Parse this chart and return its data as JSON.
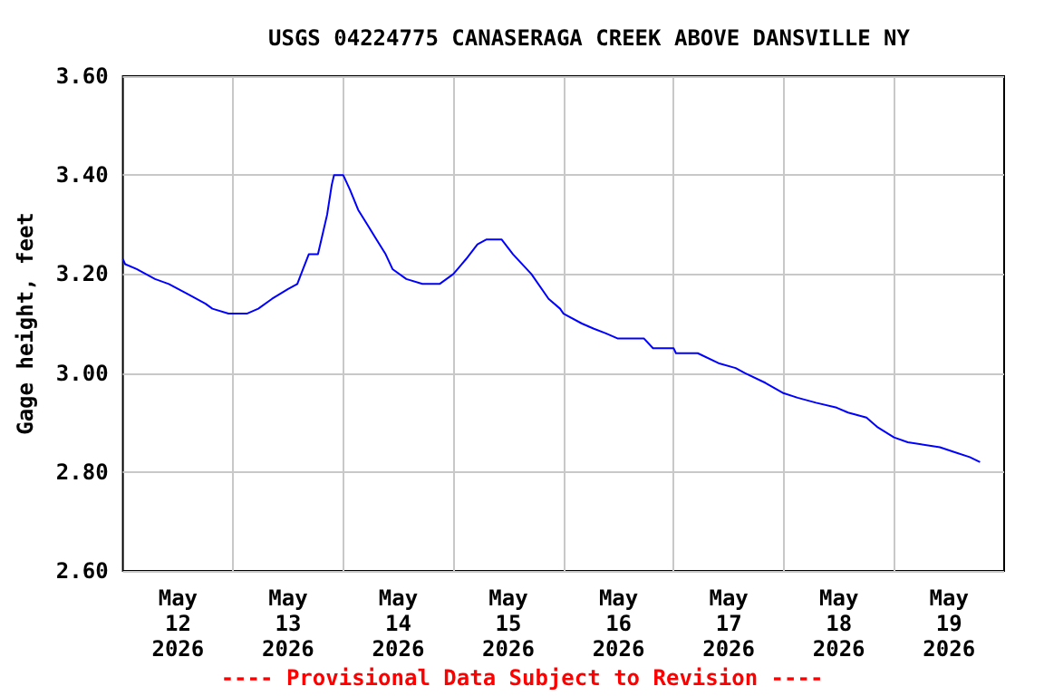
{
  "chart_data": {
    "type": "line",
    "title": "USGS 04224775 CANASERAGA CREEK ABOVE DANSVILLE NY",
    "ylabel": "Gage height, feet",
    "annotations": [
      "---- Provisional Data Subject to Revision ----"
    ],
    "x": [
      "2026-05-12T00:00",
      "2026-05-12T00:30",
      "2026-05-12T03:00",
      "2026-05-12T07:00",
      "2026-05-12T10:00",
      "2026-05-12T14:00",
      "2026-05-12T16:00",
      "2026-05-12T18:00",
      "2026-05-12T19:30",
      "2026-05-12T23:00",
      "2026-05-13T03:00",
      "2026-05-13T05:30",
      "2026-05-13T08:30",
      "2026-05-13T12:00",
      "2026-05-13T14:00",
      "2026-05-13T15:15",
      "2026-05-13T16:30",
      "2026-05-13T18:30",
      "2026-05-13T19:30",
      "2026-05-13T20:30",
      "2026-05-13T21:30",
      "2026-05-13T22:00",
      "2026-05-14T00:00",
      "2026-05-14T01:30",
      "2026-05-14T03:15",
      "2026-05-14T05:15",
      "2026-05-14T07:15",
      "2026-05-14T09:15",
      "2026-05-14T10:45",
      "2026-05-14T13:45",
      "2026-05-14T17:15",
      "2026-05-14T21:00",
      "2026-05-15T00:00",
      "2026-05-15T02:45",
      "2026-05-15T05:15",
      "2026-05-15T07:15",
      "2026-05-15T10:30",
      "2026-05-15T13:00",
      "2026-05-15T17:00",
      "2026-05-15T20:45",
      "2026-05-15T23:15",
      "2026-05-16T00:00",
      "2026-05-16T04:00",
      "2026-05-16T06:30",
      "2026-05-16T09:15",
      "2026-05-16T11:45",
      "2026-05-16T17:30",
      "2026-05-16T19:30",
      "2026-05-17T00:00",
      "2026-05-17T00:30",
      "2026-05-17T05:15",
      "2026-05-17T09:45",
      "2026-05-17T13:30",
      "2026-05-17T15:30",
      "2026-05-17T20:00",
      "2026-05-17T23:45",
      "2026-05-18T03:00",
      "2026-05-18T07:00",
      "2026-05-18T11:30",
      "2026-05-18T14:00",
      "2026-05-18T18:00",
      "2026-05-18T20:30",
      "2026-05-19T00:00",
      "2026-05-19T03:00",
      "2026-05-19T10:00",
      "2026-05-19T13:15",
      "2026-05-19T16:30",
      "2026-05-19T18:45"
    ],
    "series": [
      {
        "color": "#0000ff",
        "values": [
          3.23,
          3.22,
          3.21,
          3.19,
          3.18,
          3.16,
          3.15,
          3.14,
          3.13,
          3.12,
          3.12,
          3.13,
          3.15,
          3.17,
          3.18,
          3.21,
          3.24,
          3.24,
          3.28,
          3.32,
          3.38,
          3.4,
          3.4,
          3.37,
          3.33,
          3.3,
          3.27,
          3.24,
          3.21,
          3.19,
          3.18,
          3.18,
          3.2,
          3.23,
          3.26,
          3.27,
          3.27,
          3.24,
          3.2,
          3.15,
          3.13,
          3.12,
          3.1,
          3.09,
          3.08,
          3.07,
          3.07,
          3.05,
          3.05,
          3.04,
          3.04,
          3.02,
          3.01,
          3.0,
          2.98,
          2.96,
          2.95,
          2.94,
          2.93,
          2.92,
          2.91,
          2.89,
          2.87,
          2.86,
          2.85,
          2.84,
          2.83,
          2.82
        ]
      }
    ],
    "xlim": [
      "2026-05-12T00:00",
      "2026-05-20T00:00"
    ],
    "xticks": [
      {
        "value": "2026-05-12T12:00",
        "label": "May\n12\n2026"
      },
      {
        "value": "2026-05-13T00:00",
        "label": null
      },
      {
        "value": "2026-05-13T12:00",
        "label": "May\n13\n2026"
      },
      {
        "value": "2026-05-14T00:00",
        "label": null
      },
      {
        "value": "2026-05-14T12:00",
        "label": "May\n14\n2026"
      },
      {
        "value": "2026-05-15T00:00",
        "label": null
      },
      {
        "value": "2026-05-15T12:00",
        "label": "May\n15\n2026"
      },
      {
        "value": "2026-05-16T00:00",
        "label": null
      },
      {
        "value": "2026-05-16T12:00",
        "label": "May\n16\n2026"
      },
      {
        "value": "2026-05-17T00:00",
        "label": null
      },
      {
        "value": "2026-05-17T12:00",
        "label": "May\n17\n2026"
      },
      {
        "value": "2026-05-18T00:00",
        "label": null
      },
      {
        "value": "2026-05-18T12:00",
        "label": "May\n18\n2026"
      },
      {
        "value": "2026-05-19T00:00",
        "label": null
      },
      {
        "value": "2026-05-19T12:00",
        "label": "May\n19\n2026"
      }
    ],
    "ylim": [
      2.6,
      3.6
    ],
    "yticks": [
      {
        "value": 2.6,
        "label": "2.60"
      },
      {
        "value": 2.8,
        "label": "2.80"
      },
      {
        "value": 3.0,
        "label": "3.00"
      },
      {
        "value": 3.2,
        "label": "3.20"
      },
      {
        "value": 3.4,
        "label": "3.40"
      },
      {
        "value": 3.6,
        "label": "3.60"
      }
    ],
    "grid": true,
    "marker": "none",
    "line_style": "solid"
  }
}
